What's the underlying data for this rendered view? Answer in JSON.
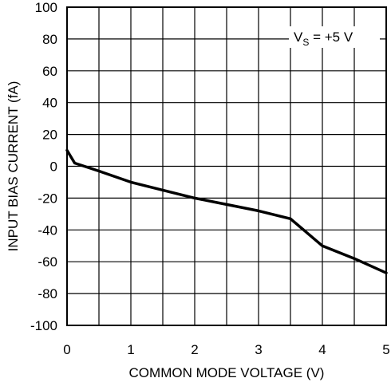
{
  "chart_data": {
    "type": "line",
    "title": "",
    "xlabel": "COMMON MODE VOLTAGE (V)",
    "ylabel": "INPUT BIAS CURRENT (fA)",
    "xlim": [
      0,
      5
    ],
    "ylim": [
      -100,
      100
    ],
    "x_ticks": [
      0,
      1,
      2,
      3,
      4,
      5
    ],
    "y_ticks": [
      100,
      80,
      60,
      40,
      20,
      0,
      -20,
      -40,
      -60,
      -80,
      -100
    ],
    "x_tick_labels": [
      "0",
      "1",
      "2",
      "3",
      "4",
      "5"
    ],
    "y_tick_labels": [
      "100",
      "80",
      "60",
      "40",
      "20",
      "0",
      "-20",
      "-40",
      "-60",
      "-80",
      "-100"
    ],
    "grid": true,
    "grid_step_x": 0.5,
    "grid_step_y": 20,
    "annotation": {
      "main": "V",
      "sub": "S",
      "rest": " = +5 V",
      "position": "top-right"
    },
    "series": [
      {
        "x": [
          0,
          0.12,
          0.5,
          1.0,
          1.5,
          2.0,
          2.5,
          3.0,
          3.5,
          4.0,
          4.5,
          5.0
        ],
        "y": [
          10,
          2,
          -3,
          -10,
          -15,
          -20,
          -24,
          -28,
          -33,
          -50,
          -58,
          -67
        ]
      }
    ]
  }
}
